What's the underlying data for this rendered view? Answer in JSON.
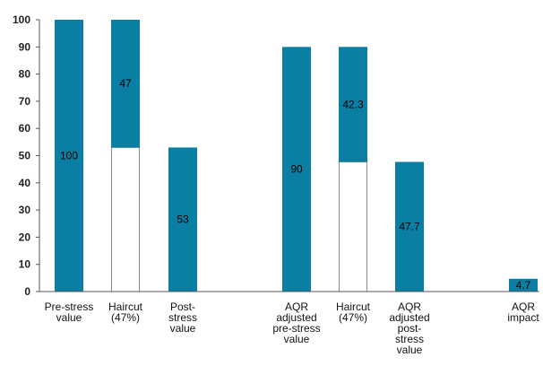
{
  "chart_data": {
    "type": "bar",
    "subtype": "waterfall",
    "ylim": [
      0,
      100
    ],
    "yticks": [
      0,
      10,
      20,
      30,
      40,
      50,
      60,
      70,
      80,
      90,
      100
    ],
    "grid": false,
    "legend": "none",
    "colors": {
      "bar": "#0a7fa3",
      "invisible_base": "#ffffff",
      "base_outline": "#7a8f99",
      "axis": "#555555"
    },
    "bars": [
      {
        "category": [
          "Pre-stress",
          "value"
        ],
        "value": 100,
        "base": 0,
        "label": "100"
      },
      {
        "category": [
          "Haircut",
          "(47%)"
        ],
        "value": 47,
        "base": 53,
        "label": "47"
      },
      {
        "category": [
          "Post-",
          "stress",
          "value"
        ],
        "value": 53,
        "base": 0,
        "label": "53"
      },
      {
        "category": [
          "AQR",
          "adjusted",
          "pre-stress",
          "value"
        ],
        "value": 90,
        "base": 0,
        "label": "90"
      },
      {
        "category": [
          "Haircut",
          "(47%)"
        ],
        "value": 42.3,
        "base": 47.7,
        "label": "42.3"
      },
      {
        "category": [
          "AQR",
          "adjusted",
          "post-",
          "stress",
          "value"
        ],
        "value": 47.7,
        "base": 0,
        "label": "47.7"
      },
      {
        "category": [
          "AQR",
          "impact"
        ],
        "value": 4.7,
        "base": 0,
        "label": "4.7"
      }
    ]
  }
}
